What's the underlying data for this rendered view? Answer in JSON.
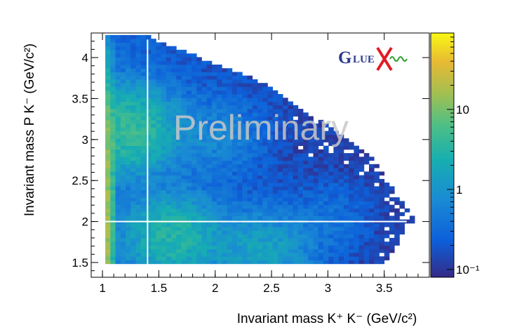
{
  "chart_data": {
    "type": "heatmap",
    "title": "",
    "xlabel": "Invariant mass K⁺ K⁻ (GeV/c²)",
    "ylabel": "Invariant mass P K⁻ (GeV/c²)",
    "xlim": [
      0.9,
      3.9
    ],
    "ylim": [
      1.32,
      4.3
    ],
    "x_ticks": [
      1,
      1.5,
      2,
      2.5,
      3,
      3.5
    ],
    "x_tick_labels": [
      "1",
      "1.5",
      "2",
      "2.5",
      "3",
      "3.5"
    ],
    "y_ticks": [
      1.5,
      2,
      2.5,
      3,
      3.5,
      4
    ],
    "y_tick_labels": [
      "1.5",
      "2",
      "2.5",
      "3",
      "3.5",
      "4"
    ],
    "colorbar": {
      "scale": "log",
      "range": [
        0.08,
        90
      ],
      "ticks": [
        0.1,
        1,
        10
      ],
      "tick_labels": [
        "10⁻¹",
        "1",
        "10"
      ]
    },
    "cut_lines": {
      "vertical_x": 1.4,
      "horizontal_y": 2.0
    },
    "density_regions": [
      {
        "x": 1.02,
        "y": 2.0,
        "intensity": 30
      },
      {
        "x": 1.2,
        "y": 3.1,
        "intensity": 8
      },
      {
        "x": 1.6,
        "y": 1.8,
        "intensity": 6
      },
      {
        "x": 2.4,
        "y": 1.6,
        "intensity": 3
      },
      {
        "x": 2.0,
        "y": 3.0,
        "intensity": 1
      },
      {
        "x": 3.0,
        "y": 2.0,
        "intensity": 0.5
      }
    ],
    "watermark": "Preliminary",
    "logo": "GlueX",
    "grid": false
  }
}
